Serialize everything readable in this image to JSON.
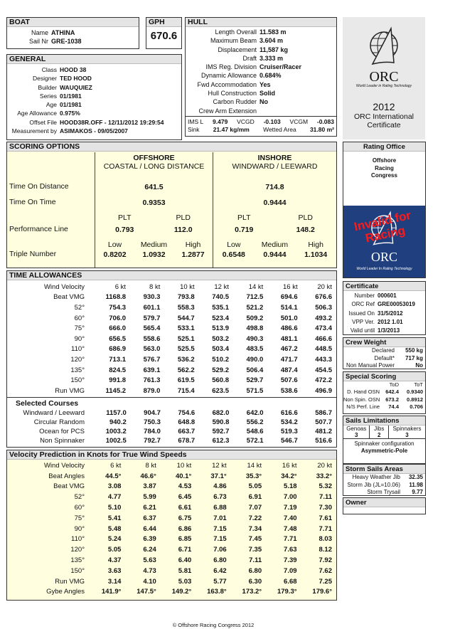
{
  "boat": {
    "title": "BOAT",
    "name_label": "Name",
    "name": "ATHINA",
    "sail_label": "Sail Nr",
    "sail": "GRE-1038"
  },
  "gph": {
    "title": "GPH",
    "value": "670.6"
  },
  "general": {
    "title": "GENERAL",
    "rows": [
      [
        "Class",
        "HOOD 38"
      ],
      [
        "Designer",
        "TED HOOD"
      ],
      [
        "Builder",
        "WAUQUIEZ"
      ],
      [
        "Series",
        "01/1981"
      ],
      [
        "Age",
        "01/1981"
      ],
      [
        "Age Allowance",
        "0.975%"
      ],
      [
        "Offset File",
        "HOOD38R.OFF - 12/11/2012 19:29:54"
      ],
      [
        "Measurement by",
        "ASIMAKOS - 09/05/2007"
      ]
    ]
  },
  "hull": {
    "title": "HULL",
    "rows": [
      [
        "Length Overall",
        "11.583 m"
      ],
      [
        "Maximum Beam",
        "3.604 m"
      ],
      [
        "Displacement",
        "11,587 kg"
      ],
      [
        "Draft",
        "3.333 m"
      ],
      [
        "IMS Reg. Division",
        "Cruiser/Racer"
      ],
      [
        "Dynamic Allowance",
        "0.684%"
      ],
      [
        "Fwd Accommodation",
        "Yes"
      ],
      [
        "Hull Construction",
        "Solid"
      ],
      [
        "Carbon Rudder",
        "No"
      ],
      [
        "Crew Arm Extension",
        ""
      ]
    ],
    "ims_l_label": "IMS L",
    "ims_l": "9.479",
    "vcgd_label": "VCGD",
    "vcgd": "-0.103",
    "vcgm_label": "VCGM",
    "vcgm": "-0.083",
    "sink_label": "Sink",
    "sink": "21.47 kg/mm",
    "wetted_label": "Wetted Area",
    "wetted": "31.80 m²"
  },
  "logo": {
    "text": "ORC",
    "tagline": "World Leader in Rating Technology",
    "year": "2012",
    "cert_line1": "ORC International",
    "cert_line2": "Certificate"
  },
  "scoring": {
    "title": "SCORING OPTIONS",
    "offshore_title": "OFFSHORE",
    "offshore_sub": "COASTAL / LONG DISTANCE",
    "inshore_title": "INSHORE",
    "inshore_sub": "WINDWARD / LEEWARD",
    "tod_label": "Time On Distance",
    "tot_label": "Time On Time",
    "pl_label": "Performance Line",
    "tn_label": "Triple Number",
    "plt": "PLT",
    "pld": "PLD",
    "low": "Low",
    "medium": "Medium",
    "high": "High",
    "offshore": {
      "tod": "641.5",
      "tot": "0.9353",
      "plt": "0.793",
      "pld": "112.0",
      "low": "0.8202",
      "medium": "1.0932",
      "high": "1.2877"
    },
    "inshore": {
      "tod": "714.8",
      "tot": "0.9444",
      "plt": "0.719",
      "pld": "148.2",
      "low": "0.6548",
      "medium": "0.9444",
      "high": "1.1034"
    }
  },
  "time_allowances": {
    "title": "TIME ALLOWANCES",
    "header": [
      "Wind Velocity",
      "6 kt",
      "8 kt",
      "10 kt",
      "12 kt",
      "14 kt",
      "16 kt",
      "20 kt"
    ],
    "rows": [
      [
        "Beat VMG",
        "1168.8",
        "930.3",
        "793.8",
        "740.5",
        "712.5",
        "694.6",
        "676.6"
      ],
      [
        "52°",
        "754.3",
        "601.1",
        "558.3",
        "535.1",
        "521.2",
        "514.1",
        "506.3"
      ],
      [
        "60°",
        "706.0",
        "579.7",
        "544.7",
        "523.4",
        "509.2",
        "501.0",
        "493.2"
      ],
      [
        "75°",
        "666.0",
        "565.4",
        "533.1",
        "513.9",
        "498.8",
        "486.6",
        "473.4"
      ],
      [
        "90°",
        "656.5",
        "558.6",
        "525.1",
        "503.2",
        "490.3",
        "481.1",
        "466.6"
      ],
      [
        "110°",
        "686.9",
        "563.0",
        "525.5",
        "503.4",
        "483.5",
        "467.2",
        "448.5"
      ],
      [
        "120°",
        "713.1",
        "576.7",
        "536.2",
        "510.2",
        "490.0",
        "471.7",
        "443.3"
      ],
      [
        "135°",
        "824.5",
        "639.1",
        "562.2",
        "529.2",
        "506.4",
        "487.4",
        "454.5"
      ],
      [
        "150°",
        "991.8",
        "761.3",
        "619.5",
        "560.8",
        "529.7",
        "507.6",
        "472.2"
      ],
      [
        "Run VMG",
        "1145.2",
        "879.0",
        "715.4",
        "623.5",
        "571.5",
        "538.6",
        "496.9"
      ]
    ],
    "selected_title": "Selected Courses",
    "selected": [
      [
        "Windward / Leeward",
        "1157.0",
        "904.7",
        "754.6",
        "682.0",
        "642.0",
        "616.6",
        "586.7"
      ],
      [
        "Circular Random",
        "940.2",
        "750.3",
        "648.8",
        "590.8",
        "556.2",
        "534.2",
        "507.7"
      ],
      [
        "Ocean for PCS",
        "1003.2",
        "784.0",
        "663.7",
        "592.7",
        "548.6",
        "519.3",
        "481.2"
      ],
      [
        "Non Spinnaker",
        "1002.5",
        "792.7",
        "678.7",
        "612.3",
        "572.1",
        "546.7",
        "516.6"
      ]
    ]
  },
  "velocity": {
    "title": "Velocity Prediction in Knots for True Wind Speeds",
    "header": [
      "Wind Velocity",
      "6 kt",
      "8 kt",
      "10 kt",
      "12 kt",
      "14 kt",
      "16 kt",
      "20 kt"
    ],
    "rows": [
      [
        "Beat Angles",
        "44.5°",
        "46.6°",
        "40.1°",
        "37.1°",
        "35.3°",
        "34.2°",
        "33.2°"
      ],
      [
        "Beat VMG",
        "3.08",
        "3.87",
        "4.53",
        "4.86",
        "5.05",
        "5.18",
        "5.32"
      ],
      [
        "52°",
        "4.77",
        "5.99",
        "6.45",
        "6.73",
        "6.91",
        "7.00",
        "7.11"
      ],
      [
        "60°",
        "5.10",
        "6.21",
        "6.61",
        "6.88",
        "7.07",
        "7.19",
        "7.30"
      ],
      [
        "75°",
        "5.41",
        "6.37",
        "6.75",
        "7.01",
        "7.22",
        "7.40",
        "7.61"
      ],
      [
        "90°",
        "5.48",
        "6.44",
        "6.86",
        "7.15",
        "7.34",
        "7.48",
        "7.71"
      ],
      [
        "110°",
        "5.24",
        "6.39",
        "6.85",
        "7.15",
        "7.45",
        "7.71",
        "8.03"
      ],
      [
        "120°",
        "5.05",
        "6.24",
        "6.71",
        "7.06",
        "7.35",
        "7.63",
        "8.12"
      ],
      [
        "135°",
        "4.37",
        "5.63",
        "6.40",
        "6.80",
        "7.11",
        "7.39",
        "7.92"
      ],
      [
        "150°",
        "3.63",
        "4.73",
        "5.81",
        "6.42",
        "6.80",
        "7.09",
        "7.62"
      ],
      [
        "Run VMG",
        "3.14",
        "4.10",
        "5.03",
        "5.77",
        "6.30",
        "6.68",
        "7.25"
      ],
      [
        "Gybe Angles",
        "141.9°",
        "147.5°",
        "149.2°",
        "163.8°",
        "173.2°",
        "179.3°",
        "179.6°"
      ]
    ]
  },
  "rating_office": {
    "title": "Rating Office",
    "lines": [
      "Offshore",
      "Racing",
      "Congress"
    ],
    "stamp": "Invalid for Racing",
    "logo_text": "ORC",
    "tagline": "World Leader In Rating Technology"
  },
  "certificate": {
    "title": "Certificate",
    "rows": [
      [
        "Number",
        "000601"
      ],
      [
        "ORC Ref",
        "GRE00053019"
      ],
      [
        "Issued On",
        "31/5/2012"
      ],
      [
        "VPP Ver.",
        "2012  1.01"
      ],
      [
        "Valid until",
        "1/3/2013"
      ]
    ]
  },
  "crew": {
    "title": "Crew Weight",
    "rows": [
      [
        "Declared",
        "550 kg"
      ],
      [
        "Default*",
        "717 kg"
      ],
      [
        "Non Manual Power",
        "No"
      ]
    ]
  },
  "special": {
    "title": "Special Scoring",
    "col1": "ToD",
    "col2": "ToT",
    "rows": [
      [
        "D. Hand OSN",
        "642.4",
        "0.9340"
      ],
      [
        "Non Spin. OSN",
        "673.2",
        "0.8912"
      ],
      [
        "N/S Perf. Line",
        "74.4",
        "0.706"
      ]
    ]
  },
  "sails": {
    "title": "Sails Limitations",
    "cols": [
      [
        "Genoas",
        "3"
      ],
      [
        "Jibs",
        "2"
      ],
      [
        "Spinnakers",
        "3"
      ]
    ],
    "config_label": "Spinnaker configuration",
    "config": "Asymmetric-Pole"
  },
  "storm": {
    "title": "Storm Sails Areas",
    "rows": [
      [
        "Heavy Weather Jib",
        "32.35"
      ],
      [
        "Storm Jib (JL=10.06)",
        "11.98"
      ],
      [
        "Storm Trysail",
        "9.77"
      ]
    ]
  },
  "owner": {
    "title": "Owner"
  },
  "footer": "© Offshore Racing Congress 2012",
  "colors": {
    "header_bg": "#e4e4e4",
    "table_bg": "#ffffe0",
    "logo_blue": "#1f3f7f",
    "stamp_red": "#ff1a1a"
  }
}
